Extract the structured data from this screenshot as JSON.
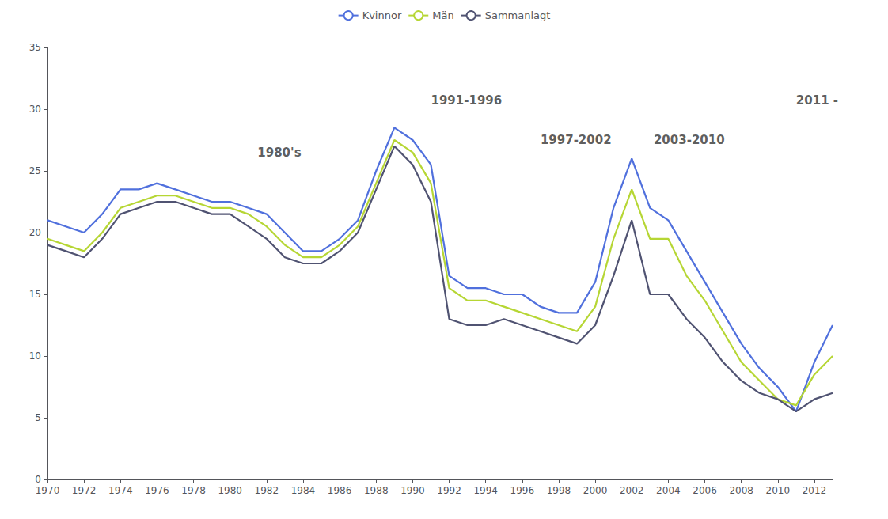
{
  "chart_data": {
    "type": "line",
    "x": [
      1970,
      1971,
      1972,
      1973,
      1974,
      1975,
      1976,
      1977,
      1978,
      1979,
      1980,
      1981,
      1982,
      1983,
      1984,
      1985,
      1986,
      1987,
      1988,
      1989,
      1990,
      1991,
      1992,
      1993,
      1994,
      1995,
      1996,
      1997,
      1998,
      1999,
      2000,
      2001,
      2002,
      2003,
      2004,
      2005,
      2006,
      2007,
      2008,
      2009,
      2010,
      2011,
      2012,
      2013
    ],
    "series": [
      {
        "name": "Kvinnor",
        "values": [
          21.0,
          20.5,
          20.0,
          21.5,
          23.5,
          23.5,
          24.0,
          23.5,
          23.0,
          22.5,
          22.5,
          22.0,
          21.5,
          20.0,
          18.5,
          18.5,
          19.5,
          21.0,
          25.0,
          28.5,
          27.5,
          25.5,
          16.5,
          15.5,
          15.5,
          15.0,
          15.0,
          14.0,
          13.5,
          13.5,
          16.0,
          22.0,
          26.0,
          22.0,
          21.0,
          18.5,
          16.0,
          13.5,
          11.0,
          9.0,
          7.5,
          5.5,
          9.5,
          12.5
        ]
      },
      {
        "name": "Män",
        "values": [
          19.5,
          19.0,
          18.5,
          20.0,
          22.0,
          22.5,
          23.0,
          23.0,
          22.5,
          22.0,
          22.0,
          21.5,
          20.5,
          19.0,
          18.0,
          18.0,
          19.0,
          20.5,
          24.0,
          27.5,
          26.5,
          24.0,
          15.5,
          14.5,
          14.5,
          14.0,
          13.5,
          13.0,
          12.5,
          12.0,
          14.0,
          19.5,
          23.5,
          19.5,
          19.5,
          16.5,
          14.5,
          12.0,
          9.5,
          8.0,
          6.5,
          6.0,
          8.5,
          10.0
        ]
      },
      {
        "name": "Sammanlagt",
        "values": [
          19.0,
          18.5,
          18.0,
          19.5,
          21.5,
          22.0,
          22.5,
          22.5,
          22.0,
          21.5,
          21.5,
          20.5,
          19.5,
          18.0,
          17.5,
          17.5,
          18.5,
          20.0,
          23.5,
          27.0,
          25.5,
          22.5,
          13.0,
          12.5,
          12.5,
          13.0,
          12.5,
          12.0,
          11.5,
          11.0,
          12.5,
          16.5,
          21.0,
          15.0,
          15.0,
          13.0,
          11.5,
          9.5,
          8.0,
          7.0,
          6.5,
          5.5,
          6.5,
          7.0
        ]
      }
    ],
    "xlim": [
      1970,
      2013
    ],
    "xticks": [
      1970,
      1972,
      1974,
      1976,
      1978,
      1980,
      1982,
      1984,
      1986,
      1988,
      1990,
      1992,
      1994,
      1996,
      1998,
      2000,
      2002,
      2004,
      2006,
      2008,
      2010,
      2012
    ],
    "ylim": [
      0,
      35
    ],
    "yticks": [
      0,
      5,
      10,
      15,
      20,
      25,
      30,
      35
    ],
    "grid": false,
    "legend": "top",
    "annotations": [
      {
        "text": "1980's",
        "x": 1981.5,
        "y": 26.0
      },
      {
        "text": "1991-1996",
        "x": 1991.0,
        "y": 30.2
      },
      {
        "text": "1997-2002",
        "x": 1997.0,
        "y": 27.0
      },
      {
        "text": "2003-2010",
        "x": 2003.2,
        "y": 27.0
      },
      {
        "text": "2011 -",
        "x": 2011.0,
        "y": 30.2
      }
    ]
  }
}
